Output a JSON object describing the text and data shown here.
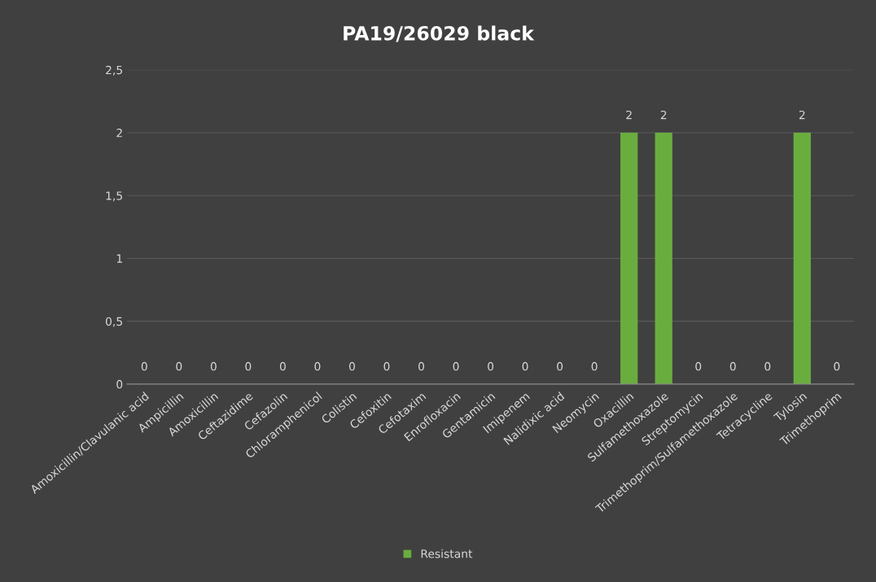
{
  "chart_data": {
    "type": "bar",
    "title": "PA19/26029 black",
    "categories": [
      "Amoxicillin/Clavulanic acid",
      "Ampicillin",
      "Amoxicillin",
      "Ceftazidime",
      "Cefazolin",
      "Chloramphenicol",
      "Colistin",
      "Cefoxitin",
      "Cefotaxim",
      "Enrofloxacin",
      "Gentamicin",
      "Imipenem",
      "Nalidixic acid",
      "Neomycin",
      "Oxacillin",
      "Sulfamethoxazole",
      "Streptomycin",
      "Trimethoprim/Sulfamethoxazole",
      "Tetracycline",
      "Tylosin",
      "Trimethoprim"
    ],
    "series": [
      {
        "name": "Resistant",
        "color": "#6aad3f",
        "values": [
          0,
          0,
          0,
          0,
          0,
          0,
          0,
          0,
          0,
          0,
          0,
          0,
          0,
          0,
          2,
          2,
          0,
          0,
          0,
          2,
          0
        ]
      }
    ],
    "ylim": [
      0,
      2.5
    ],
    "yticks": [
      0,
      {
        "value": 0.5,
        "label": "0,5"
      },
      1,
      {
        "value": 1.5,
        "label": "1,5"
      },
      2,
      {
        "value": 2.5,
        "label": "2,5"
      }
    ],
    "grid": "y",
    "legend": "bottom",
    "data_labels": true
  }
}
